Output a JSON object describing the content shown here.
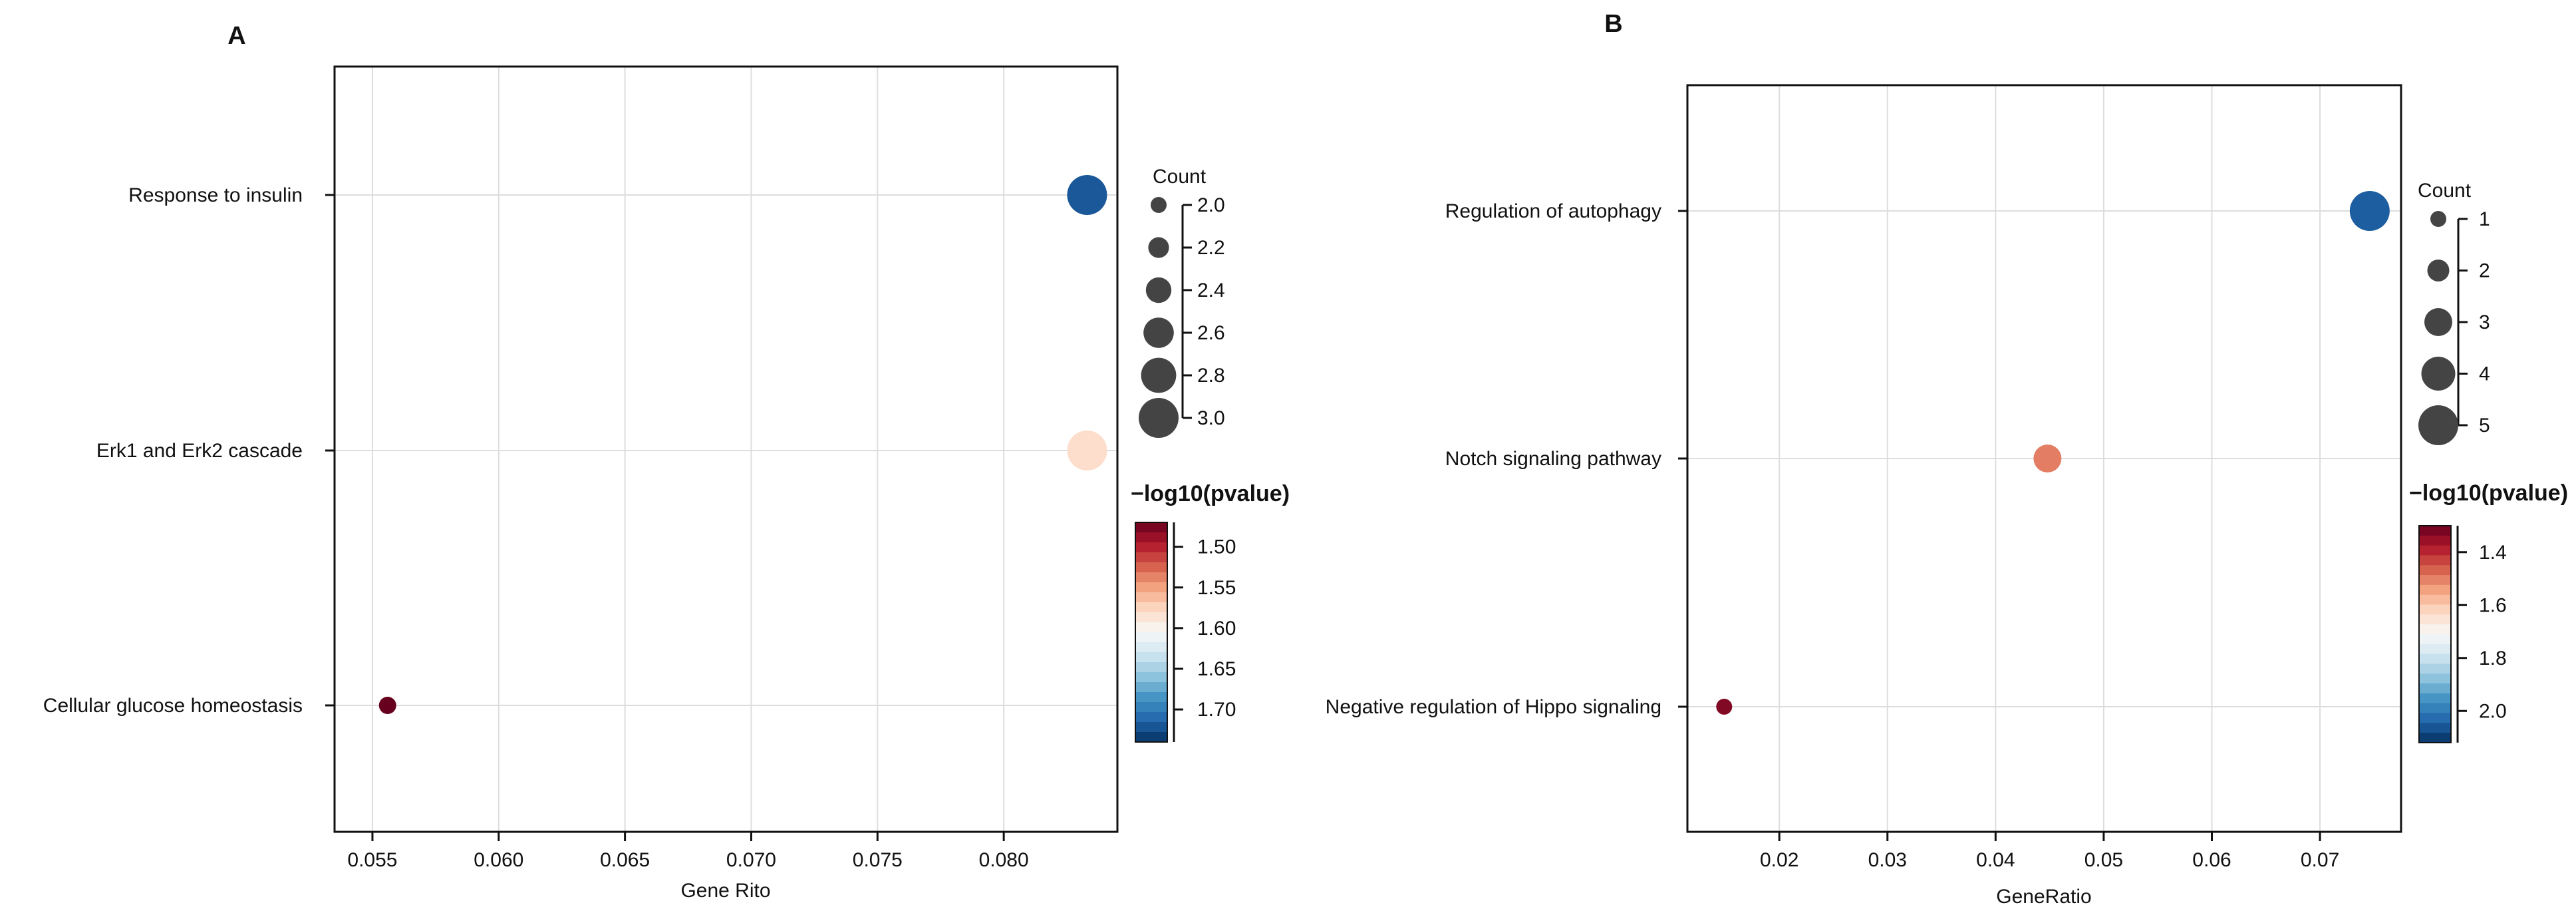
{
  "chart_data": [
    {
      "panel": "A",
      "type": "scatter",
      "title": "",
      "xlabel": "Gene Rito",
      "ylabel": "",
      "xlim": [
        0.0535,
        0.0845
      ],
      "x_ticks": [
        "0.055",
        "0.060",
        "0.065",
        "0.070",
        "0.075",
        "0.080"
      ],
      "x_tick_values": [
        0.055,
        0.06,
        0.065,
        0.07,
        0.075,
        0.08
      ],
      "categories": [
        "Response to insulin",
        "Erk1 and Erk2 cascade",
        "Cellular glucose homeostasis"
      ],
      "grid": true,
      "points": [
        {
          "term": "Response to insulin",
          "gene_ratio": 0.0833,
          "count": 3,
          "neg_log10_pvalue": 1.72
        },
        {
          "term": "Erk1 and Erk2 cascade",
          "gene_ratio": 0.0833,
          "count": 3,
          "neg_log10_pvalue": 1.58
        },
        {
          "term": "Cellular glucose homeostasis",
          "gene_ratio": 0.0556,
          "count": 2,
          "neg_log10_pvalue": 1.47
        }
      ],
      "size_legend": {
        "title": "Count",
        "values": [
          2.0,
          2.2,
          2.4,
          2.6,
          2.8,
          3.0
        ],
        "labels": [
          "2.0",
          "2.2",
          "2.4",
          "2.6",
          "2.8",
          "3.0"
        ]
      },
      "color_legend": {
        "title": "−log10(pvalue)",
        "range": [
          1.47,
          1.74
        ],
        "ticks": [
          1.5,
          1.55,
          1.6,
          1.65,
          1.7
        ],
        "labels": [
          "1.50",
          "1.55",
          "1.60",
          "1.65",
          "1.70"
        ],
        "colormap": "RdBu"
      }
    },
    {
      "panel": "B",
      "type": "scatter",
      "title": "",
      "xlabel": "GeneRatio",
      "ylabel": "",
      "xlim": [
        0.0115,
        0.0775
      ],
      "x_ticks": [
        "0.02",
        "0.03",
        "0.04",
        "0.05",
        "0.06",
        "0.07"
      ],
      "x_tick_values": [
        0.02,
        0.03,
        0.04,
        0.05,
        0.06,
        0.07
      ],
      "categories": [
        "Regulation of autophagy",
        "Notch signaling pathway",
        "Negative regulation of Hippo signaling"
      ],
      "grid": true,
      "points": [
        {
          "term": "Regulation of autophagy",
          "gene_ratio": 0.0746,
          "count": 5,
          "neg_log10_pvalue": 2.05
        },
        {
          "term": "Notch signaling pathway",
          "gene_ratio": 0.0448,
          "count": 3,
          "neg_log10_pvalue": 1.5
        },
        {
          "term": "Negative regulation of Hippo signaling",
          "gene_ratio": 0.0149,
          "count": 1,
          "neg_log10_pvalue": 1.33
        }
      ],
      "size_legend": {
        "title": "Count",
        "values": [
          1,
          2,
          3,
          4,
          5
        ],
        "labels": [
          "1",
          "2",
          "3",
          "4",
          "5"
        ]
      },
      "color_legend": {
        "title": "−log10(pvalue)",
        "range": [
          1.3,
          2.12
        ],
        "ticks": [
          1.4,
          1.6,
          1.8,
          2.0
        ],
        "labels": [
          "1.4",
          "1.6",
          "1.8",
          "2.0"
        ],
        "colormap": "RdBu"
      }
    }
  ],
  "colors": {
    "rdbu": [
      "#67001f",
      "#b2182b",
      "#d6604d",
      "#f4a582",
      "#fddbc7",
      "#f7f7f7",
      "#d1e5f0",
      "#92c5de",
      "#4393c3",
      "#2166ac",
      "#053061"
    ],
    "size_legend_dot": "#444444",
    "grid": "#dddddd",
    "axis": "#111111"
  }
}
